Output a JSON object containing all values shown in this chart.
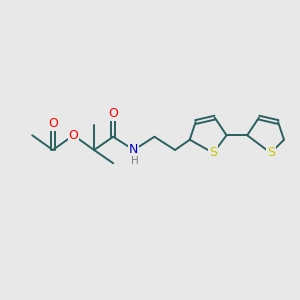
{
  "bg_color": "#e8e8e8",
  "atom_colors": {
    "S": "#c8c800",
    "O": "#ff0000",
    "N": "#0000cc",
    "C": "#2a6060",
    "H": "#808080"
  },
  "bond_color": "#2a6060",
  "bond_width": 1.4,
  "figsize": [
    3.0,
    3.0
  ],
  "dpi": 100
}
